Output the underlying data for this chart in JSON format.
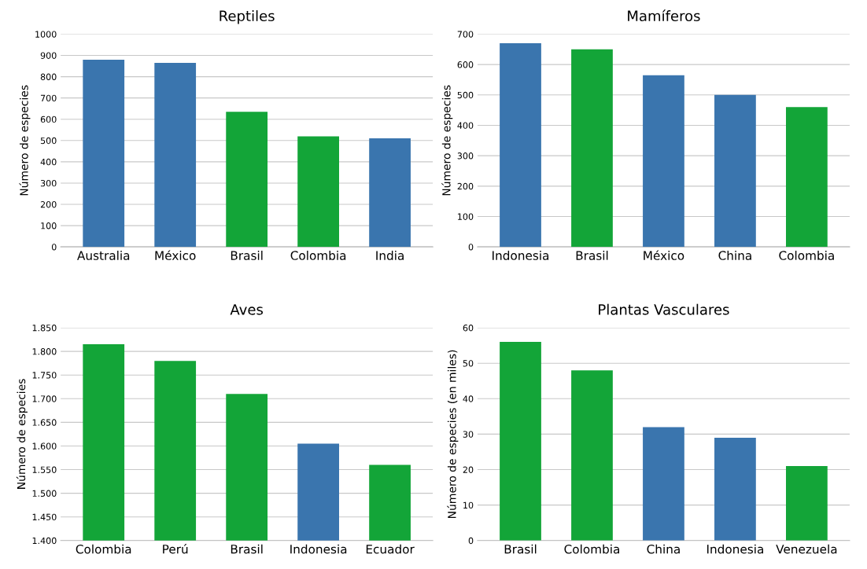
{
  "chart_data": [
    {
      "type": "bar",
      "title": "Reptiles",
      "ylabel": "Número de especies",
      "categories": [
        "Australia",
        "México",
        "Brasil",
        "Colombia",
        "India"
      ],
      "values": [
        880,
        865,
        635,
        520,
        510
      ],
      "colors": [
        "#3a75ae",
        "#3a75ae",
        "#13a538",
        "#13a538",
        "#3a75ae"
      ],
      "ylim": [
        0,
        1000
      ],
      "yticks": [
        0,
        100,
        200,
        300,
        400,
        500,
        600,
        700,
        800,
        900,
        1000
      ],
      "grid": "y"
    },
    {
      "type": "bar",
      "title": "Mamíferos",
      "ylabel": "Número de especies",
      "categories": [
        "Indonesia",
        "Brasil",
        "México",
        "China",
        "Colombia"
      ],
      "values": [
        670,
        650,
        565,
        500,
        460
      ],
      "colors": [
        "#3a75ae",
        "#13a538",
        "#3a75ae",
        "#3a75ae",
        "#13a538"
      ],
      "ylim": [
        0,
        700
      ],
      "yticks": [
        0,
        100,
        200,
        300,
        400,
        500,
        600,
        700
      ],
      "grid": "y"
    },
    {
      "type": "bar",
      "title": "Aves",
      "ylabel": "Número de especies",
      "categories": [
        "Colombia",
        "Perú",
        "Brasil",
        "Indonesia",
        "Ecuador"
      ],
      "values": [
        1815,
        1780,
        1710,
        1605,
        1560
      ],
      "colors": [
        "#13a538",
        "#13a538",
        "#13a538",
        "#3a75ae",
        "#13a538"
      ],
      "ylim": [
        1400,
        1850
      ],
      "yticks": [
        {
          "value": 1400,
          "label": "1.400"
        },
        {
          "value": 1450,
          "label": "1.450"
        },
        {
          "value": 1500,
          "label": "1.500"
        },
        {
          "value": 1550,
          "label": "1.550"
        },
        {
          "value": 1600,
          "label": "1.600"
        },
        {
          "value": 1650,
          "label": "1.650"
        },
        {
          "value": 1700,
          "label": "1.700"
        },
        {
          "value": 1750,
          "label": "1.750"
        },
        {
          "value": 1800,
          "label": "1.800"
        },
        {
          "value": 1850,
          "label": "1.850"
        }
      ],
      "grid": "y"
    },
    {
      "type": "bar",
      "title": "Plantas Vasculares",
      "ylabel": "Número de especies (en miles)",
      "categories": [
        "Brasil",
        "Colombia",
        "China",
        "Indonesia",
        "Venezuela"
      ],
      "values": [
        56,
        48,
        32,
        29,
        21
      ],
      "colors": [
        "#13a538",
        "#13a538",
        "#3a75ae",
        "#3a75ae",
        "#13a538"
      ],
      "ylim": [
        0,
        60
      ],
      "yticks": [
        0,
        10,
        20,
        30,
        40,
        50,
        60
      ],
      "grid": "y"
    }
  ]
}
